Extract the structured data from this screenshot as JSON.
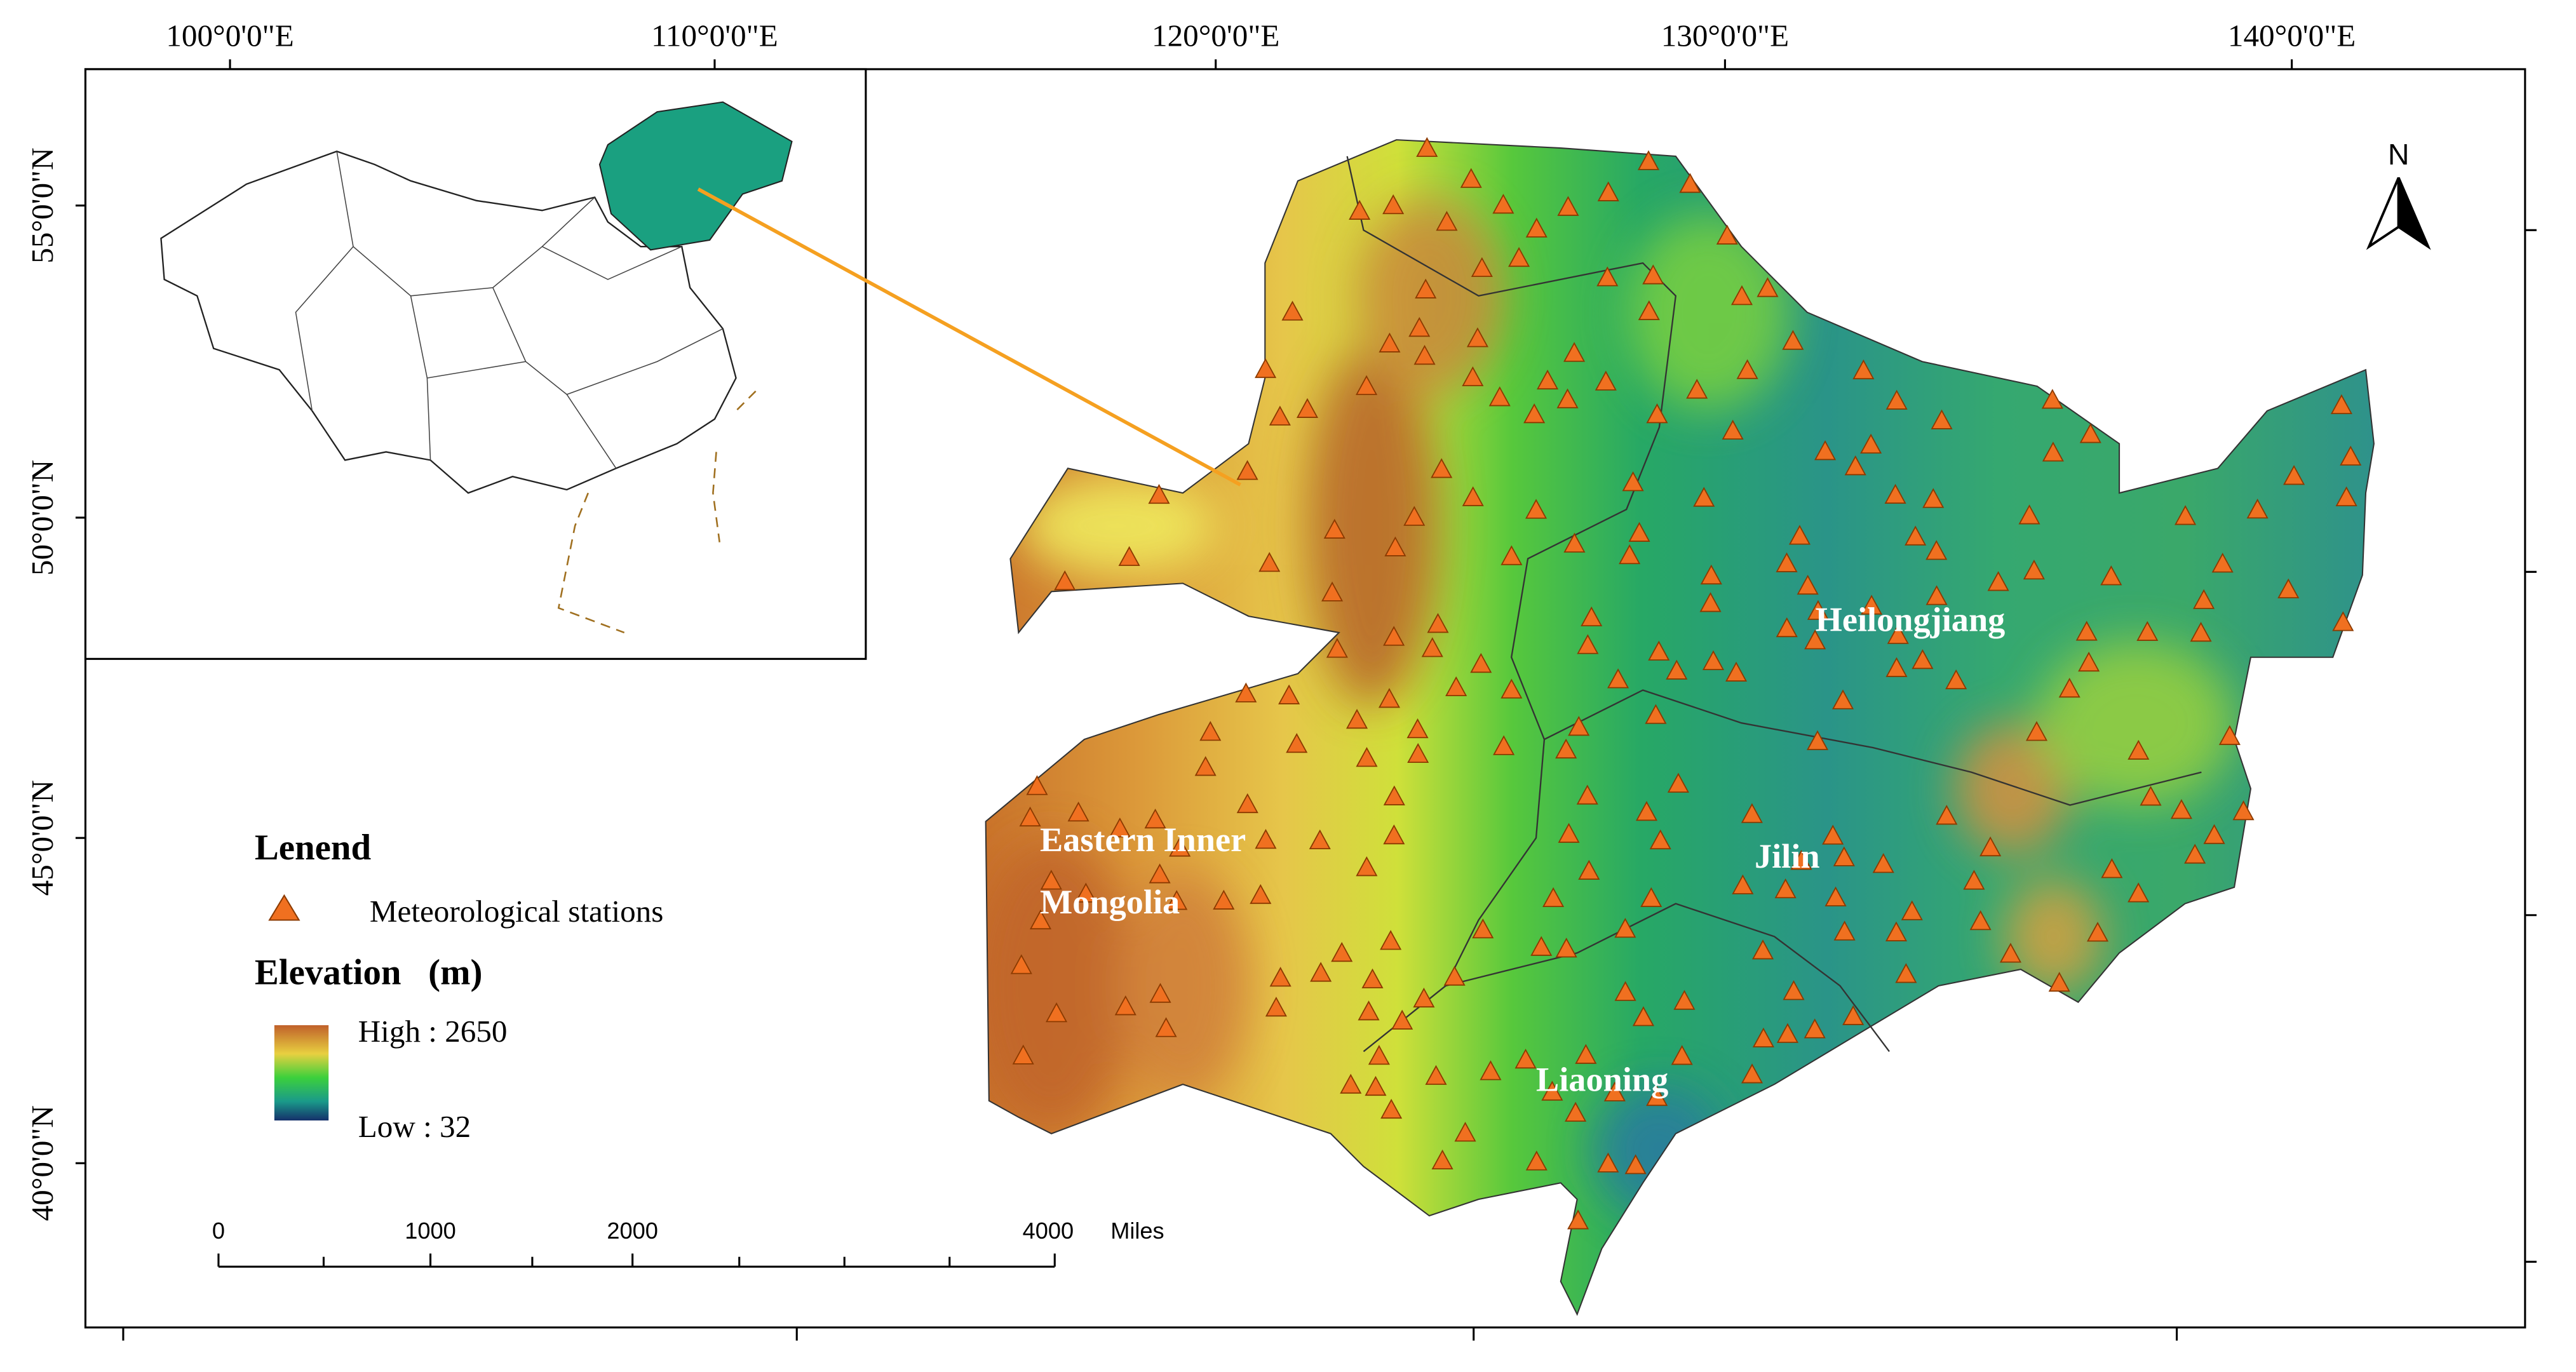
{
  "map": {
    "longitude_labels": [
      "100°0'0\"E",
      "110°0'0\"E",
      "120°0'0\"E",
      "130°0'0\"E",
      "140°0'0\"E"
    ],
    "latitude_labels": [
      "55°0'0\"N",
      "50°0'0\"N",
      "45°0'0\"N",
      "40°0'0\"N"
    ],
    "regions": [
      "Eastern Inner",
      "Mongolia",
      "Heilongjiang",
      "Jilin",
      "Liaoning"
    ],
    "north_arrow": "N"
  },
  "legend": {
    "title": "Lenend",
    "stations": "Meteorological stations",
    "elevation": "Elevation   (m)",
    "high": "High : 2650",
    "low": "Low : 32"
  },
  "scale_bar": {
    "labels": [
      "0",
      "1000",
      "2000",
      "4000"
    ],
    "unit": "Miles"
  }
}
